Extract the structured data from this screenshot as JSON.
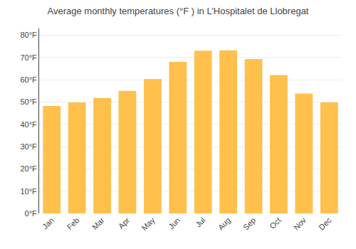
{
  "chart_data": {
    "type": "bar",
    "title": "Average monthly temperatures (°F ) in L’Hospitalet de Llobregat",
    "categories": [
      "Jan",
      "Feb",
      "Mar",
      "Apr",
      "May",
      "Jun",
      "Jul",
      "Aug",
      "Sep",
      "Oct",
      "Nov",
      "Dec"
    ],
    "values": [
      48.2,
      49.8,
      51.8,
      55.0,
      60.3,
      68.0,
      73.0,
      73.2,
      69.3,
      62.1,
      53.8,
      49.8
    ],
    "color": "#FFC04C",
    "ylim": [
      0,
      83
    ],
    "yticks": [
      {
        "value": 0,
        "label": "0°F"
      },
      {
        "value": 10,
        "label": "10°F"
      },
      {
        "value": 20,
        "label": "20°F"
      },
      {
        "value": 30,
        "label": "30°F"
      },
      {
        "value": 40,
        "label": "40°F"
      },
      {
        "value": 50,
        "label": "50°F"
      },
      {
        "value": 60,
        "label": "60°F"
      },
      {
        "value": 70,
        "label": "70°F"
      },
      {
        "value": 80,
        "label": "80°F"
      }
    ],
    "grid": true
  }
}
